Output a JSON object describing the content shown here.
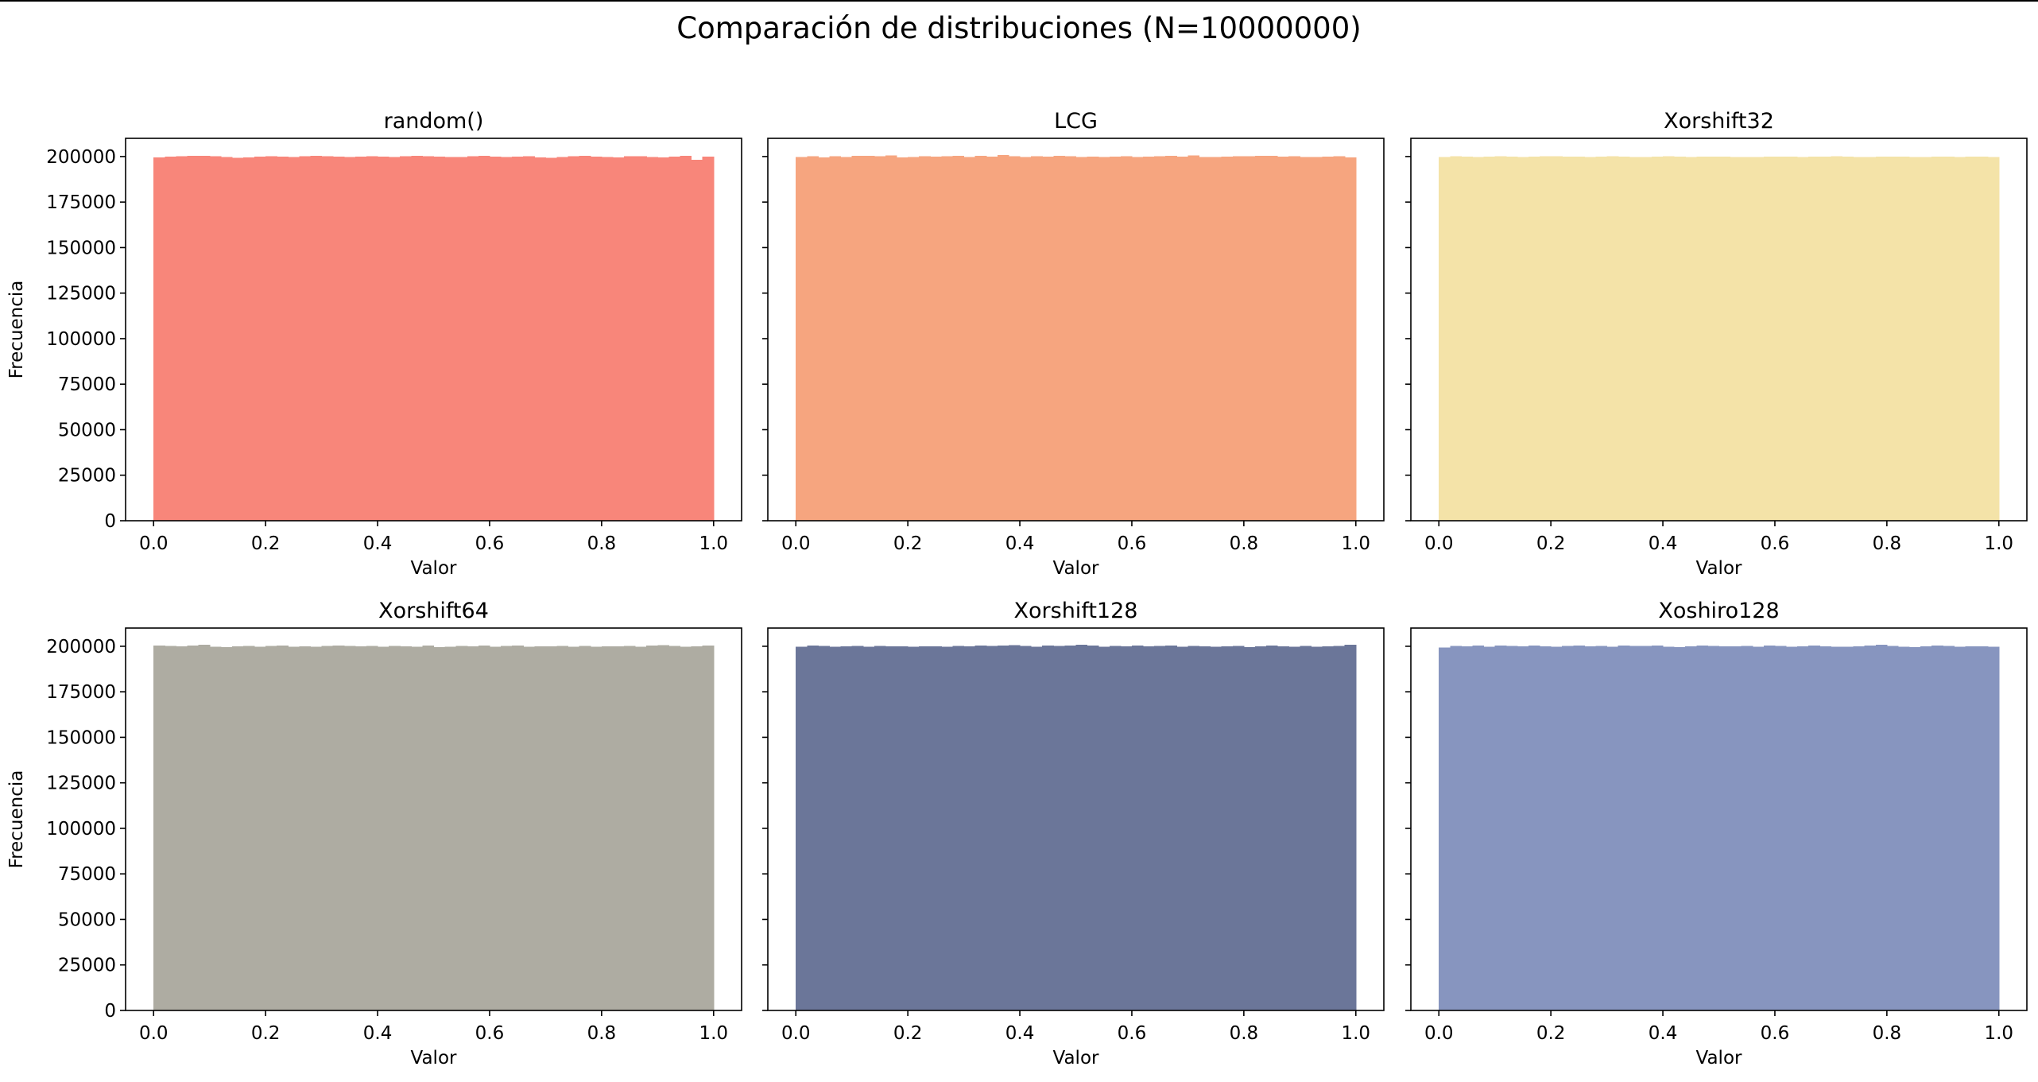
{
  "figure": {
    "suptitle": "Comparación de distribuciones (N=10000000)"
  },
  "chart_data": [
    {
      "type": "bar",
      "title": "random()",
      "xlabel": "Valor",
      "ylabel": "Frecuencia",
      "xlim": [
        -0.05,
        1.05
      ],
      "ylim": [
        0,
        210000
      ],
      "xticks": [
        "0.0",
        "0.2",
        "0.4",
        "0.6",
        "0.8",
        "1.0"
      ],
      "yticks": [
        "0",
        "25000",
        "50000",
        "75000",
        "100000",
        "125000",
        "150000",
        "175000",
        "200000"
      ],
      "bin_range": [
        0,
        1
      ],
      "color": "#f8867a",
      "values": [
        199600,
        199900,
        200100,
        200300,
        200500,
        200200,
        199800,
        199400,
        199600,
        200000,
        200200,
        199900,
        199700,
        200100,
        200300,
        200200,
        199900,
        199800,
        200000,
        200200,
        199900,
        199700,
        200200,
        200300,
        200100,
        199900,
        199800,
        199700,
        200100,
        200300,
        200000,
        199800,
        199900,
        200100,
        199600,
        199400,
        199800,
        200100,
        200300,
        200000,
        199700,
        199600,
        200100,
        200200,
        199700,
        199500,
        199900,
        200300,
        198200,
        199900
      ]
    },
    {
      "type": "bar",
      "title": "LCG",
      "xlabel": "Valor",
      "ylabel": "",
      "xlim": [
        -0.05,
        1.05
      ],
      "ylim": [
        0,
        210000
      ],
      "xticks": [
        "0.0",
        "0.2",
        "0.4",
        "0.6",
        "0.8",
        "1.0"
      ],
      "yticks": [],
      "bin_range": [
        0,
        1
      ],
      "color": "#f6a57f",
      "values": [
        199800,
        200100,
        199600,
        200200,
        199700,
        200400,
        200300,
        200100,
        200600,
        199500,
        199800,
        200200,
        199900,
        200100,
        200400,
        199700,
        200300,
        199900,
        200800,
        200100,
        199700,
        200200,
        199900,
        200300,
        200100,
        199800,
        200000,
        199700,
        199900,
        200200,
        199800,
        199900,
        200100,
        200300,
        199900,
        200700,
        199700,
        199800,
        200000,
        200200,
        200100,
        200400,
        200300,
        199900,
        200200,
        199700,
        199800,
        199900,
        200100,
        199600
      ]
    },
    {
      "type": "bar",
      "title": "Xorshift32",
      "xlabel": "Valor",
      "ylabel": "",
      "xlim": [
        -0.05,
        1.05
      ],
      "ylim": [
        0,
        210000
      ],
      "xticks": [
        "0.0",
        "0.2",
        "0.4",
        "0.6",
        "0.8",
        "1.0"
      ],
      "yticks": [],
      "bin_range": [
        0,
        1
      ],
      "color": "#f4e3a8",
      "values": [
        199700,
        200100,
        200000,
        199800,
        199900,
        200100,
        199900,
        199700,
        200000,
        200200,
        200100,
        199900,
        200000,
        199800,
        200000,
        200100,
        199900,
        199700,
        199800,
        200000,
        200100,
        200000,
        199800,
        199900,
        200000,
        199900,
        199800,
        199700,
        199800,
        199900,
        200000,
        199900,
        199800,
        199900,
        200000,
        200100,
        199900,
        199800,
        199700,
        199900,
        200000,
        199900,
        199800,
        199700,
        200000,
        199900,
        199800,
        199900,
        200000,
        199800
      ]
    },
    {
      "type": "bar",
      "title": "Xorshift64",
      "xlabel": "Valor",
      "ylabel": "Frecuencia",
      "xlim": [
        -0.05,
        1.05
      ],
      "ylim": [
        0,
        210000
      ],
      "xticks": [
        "0.0",
        "0.2",
        "0.4",
        "0.6",
        "0.8",
        "1.0"
      ],
      "yticks": [
        "0",
        "25000",
        "50000",
        "75000",
        "100000",
        "125000",
        "150000",
        "175000",
        "200000"
      ],
      "bin_range": [
        0,
        1
      ],
      "color": "#aeaca2",
      "values": [
        200400,
        200100,
        199900,
        200500,
        200800,
        199800,
        199600,
        199900,
        200200,
        199700,
        200100,
        200300,
        199800,
        200000,
        199700,
        200100,
        200400,
        200200,
        199900,
        200100,
        199800,
        200200,
        200000,
        199700,
        200300,
        199500,
        199800,
        200200,
        199900,
        200300,
        199800,
        200100,
        200400,
        199800,
        200000,
        199900,
        200200,
        199800,
        200100,
        199700,
        199900,
        200000,
        200200,
        199800,
        200300,
        200600,
        200200,
        199800,
        200000,
        200300
      ]
    },
    {
      "type": "bar",
      "title": "Xorshift128",
      "xlabel": "Valor",
      "ylabel": "",
      "xlim": [
        -0.05,
        1.05
      ],
      "ylim": [
        0,
        210000
      ],
      "xticks": [
        "0.0",
        "0.2",
        "0.4",
        "0.6",
        "0.8",
        "1.0"
      ],
      "yticks": [],
      "bin_range": [
        0,
        1
      ],
      "color": "#6b7699",
      "values": [
        199800,
        200300,
        200100,
        199700,
        199900,
        200100,
        199800,
        200200,
        199900,
        200000,
        199700,
        199900,
        200000,
        199800,
        200200,
        199900,
        200300,
        200100,
        200400,
        200700,
        200200,
        199800,
        200500,
        200100,
        200300,
        200800,
        200400,
        199800,
        200200,
        200000,
        200300,
        199900,
        200100,
        200400,
        199700,
        200200,
        200000,
        199700,
        199900,
        200100,
        199600,
        199900,
        200300,
        200000,
        199800,
        200100,
        199700,
        199900,
        200200,
        200900
      ]
    },
    {
      "type": "bar",
      "title": "Xoshiro128",
      "xlabel": "Valor",
      "ylabel": "",
      "xlim": [
        -0.05,
        1.05
      ],
      "ylim": [
        0,
        210000
      ],
      "xticks": [
        "0.0",
        "0.2",
        "0.4",
        "0.6",
        "0.8",
        "1.0"
      ],
      "yticks": [],
      "bin_range": [
        0,
        1
      ],
      "color": "#8795bf",
      "values": [
        199300,
        200200,
        200000,
        200400,
        199800,
        200300,
        200100,
        199900,
        200300,
        200000,
        199800,
        200100,
        200400,
        199900,
        200100,
        199800,
        200400,
        200200,
        200100,
        200300,
        199800,
        199500,
        200000,
        200300,
        200200,
        200000,
        199900,
        200200,
        199800,
        200300,
        200100,
        199700,
        199900,
        200300,
        200000,
        199800,
        199700,
        200000,
        200500,
        200900,
        200200,
        199800,
        199600,
        200000,
        200300,
        200100,
        199800,
        200000,
        199900,
        199700
      ]
    }
  ]
}
